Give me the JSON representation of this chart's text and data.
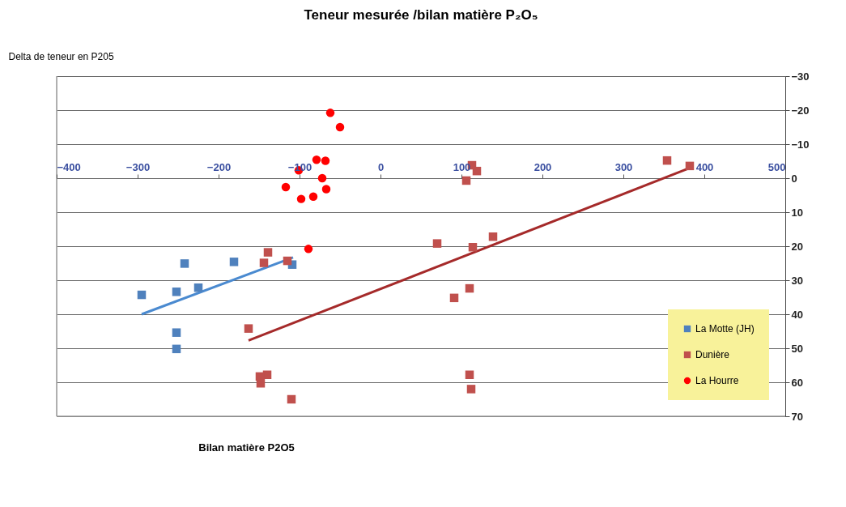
{
  "chart_data": {
    "type": "scatter",
    "title": "Teneur mesurée /bilan matière P₂O₅",
    "xlabel": "Bilan  matière P2O5",
    "ylabel": "Delta de teneur en P205",
    "xlim": [
      -400,
      500
    ],
    "xticks": [
      -400,
      -300,
      -200,
      -100,
      0,
      100,
      200,
      300,
      400,
      500
    ],
    "ylim": [
      70,
      -30
    ],
    "yticks": [
      -30,
      -20,
      -10,
      0,
      10,
      20,
      30,
      40,
      50,
      60,
      70
    ],
    "grid": "y",
    "legend": "bottom right",
    "series": [
      {
        "name": "La Motte (JH)",
        "color": "#4f81bd",
        "marker": "square",
        "x": [
          -242,
          -181,
          -109,
          -295,
          -252,
          -225,
          -252,
          -252
        ],
        "values": [
          25.1,
          24.6,
          25.4,
          34.3,
          33.4,
          32.2,
          45.4,
          50.2
        ]
      },
      {
        "name": "Dunière",
        "color": "#c0504d",
        "marker": "square",
        "x": [
          -139,
          -144,
          -115,
          -163,
          -140,
          -149,
          -148,
          -110,
          354,
          382,
          113,
          119,
          106,
          70,
          114,
          139,
          110,
          91,
          110,
          112
        ],
        "values": [
          21.8,
          24.9,
          24.3,
          44.2,
          57.8,
          58.3,
          60.3,
          65,
          -5.2,
          -3.6,
          -3.8,
          -2.1,
          0.7,
          19.2,
          20.3,
          17.2,
          32.4,
          35.2,
          57.8,
          62
        ]
      },
      {
        "name": "La Hourre",
        "color": "#ff0000",
        "marker": "circle",
        "x": [
          -62,
          -50,
          -79,
          -68,
          -101,
          -72,
          -117,
          -67,
          -83,
          -98,
          -89
        ],
        "values": [
          -19.2,
          -15,
          -5.4,
          -5.1,
          -2.3,
          0,
          2.6,
          3.2,
          5.4,
          6.1,
          20.8
        ]
      },
      {
        "type": "line",
        "color": "#4a8ad0",
        "x": [
          -295,
          -108
        ],
        "values": [
          40.0,
          23.3
        ]
      },
      {
        "type": "line",
        "color": "#a52a2a",
        "x": [
          -163,
          382
        ],
        "values": [
          47.7,
          -3.0
        ]
      }
    ]
  }
}
